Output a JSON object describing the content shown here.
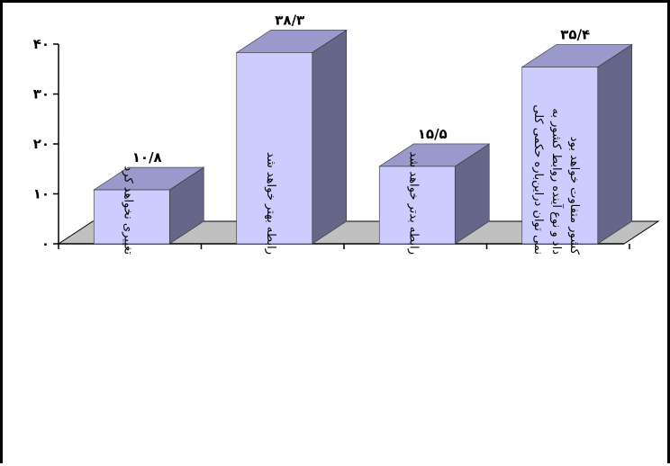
{
  "chart_data": {
    "type": "bar",
    "categories": [
      [
        "تغییری نخواهد کرد"
      ],
      [
        "رابطه بهتر خواهد شد"
      ],
      [
        "رابطه بدتر خواهد شد"
      ],
      [
        "نمی توان دراین‌باره حکمی کلی",
        "داد و نوع آینده روابط کشور به",
        "کشور متفاوت خواهد بود"
      ]
    ],
    "values": [
      10.8,
      38.3,
      15.5,
      35.4
    ],
    "value_labels": [
      "۱۰/۸",
      "۳۸/۳",
      "۱۵/۵",
      "۳۵/۴"
    ],
    "ylim": [
      0,
      40
    ],
    "yticks": [
      0,
      10,
      20,
      30,
      40
    ],
    "ytick_labels": [
      "۰",
      "۱۰",
      "۲۰",
      "۳۰",
      "۴۰"
    ],
    "title": "",
    "xlabel": "",
    "ylabel": "",
    "grid": false,
    "style": "3d",
    "colors": {
      "bar_front": "#ccccff",
      "bar_top": "#9999cc",
      "bar_side": "#666688",
      "floor": "#c0c0c0",
      "axis": "#000000"
    }
  }
}
